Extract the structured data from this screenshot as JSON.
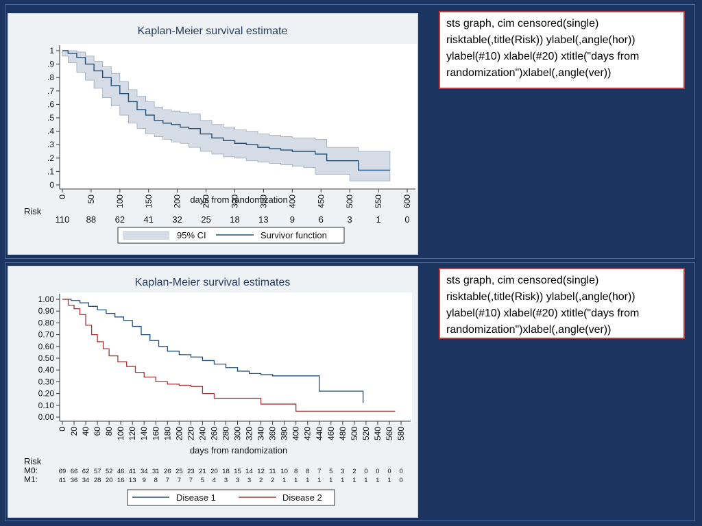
{
  "slide": {
    "code_text_1": "sts graph, cim censored(single)\nrisktable(,title(Risk)) ylabel(,angle(hor))\nylabel(#10) xlabel(#20) xtitle(\"days from\nrandomization\")xlabel(,angle(ver))",
    "code_text_2": "sts graph, cim censored(single)\nrisktable(,title(Risk)) ylabel(,angle(hor))\nylabel(#10) xlabel(#20) xtitle(\"days from\nrandomization\")xlabel(,angle(ver))",
    "colors": {
      "background": "#1b3560",
      "plot_background": "#eef2f5",
      "code_border": "#c0393b",
      "survivor_line": "#1f4e79",
      "disease2_line": "#a83232",
      "ci_band": "#d5dce6"
    }
  },
  "chart_data": [
    {
      "type": "line",
      "title": "Kaplan-Meier survival estimate",
      "xlabel": "days from randomization",
      "ylabel": "",
      "xlim": [
        0,
        600
      ],
      "ylim": [
        0,
        1
      ],
      "x_ticks": [
        0,
        50,
        100,
        150,
        200,
        250,
        300,
        350,
        400,
        450,
        500,
        550,
        600
      ],
      "y_ticks": [
        0,
        0.1,
        0.2,
        0.3,
        0.4,
        0.5,
        0.6,
        0.7,
        0.8,
        0.9,
        1
      ],
      "y_tick_labels": [
        "0",
        ".1",
        ".2",
        ".3",
        ".4",
        ".5",
        ".6",
        ".7",
        ".8",
        ".9",
        "1"
      ],
      "grid": false,
      "legend_position": "bottom",
      "series": [
        {
          "name": "Survivor function",
          "x": [
            0,
            10,
            25,
            40,
            55,
            70,
            85,
            100,
            115,
            130,
            145,
            160,
            175,
            190,
            205,
            220,
            240,
            260,
            280,
            300,
            320,
            340,
            360,
            380,
            400,
            420,
            440,
            460,
            480,
            500,
            515,
            545,
            570
          ],
          "y": [
            1,
            0.98,
            0.95,
            0.9,
            0.85,
            0.8,
            0.74,
            0.68,
            0.62,
            0.56,
            0.52,
            0.48,
            0.46,
            0.45,
            0.43,
            0.42,
            0.38,
            0.35,
            0.33,
            0.31,
            0.3,
            0.28,
            0.27,
            0.26,
            0.25,
            0.25,
            0.23,
            0.18,
            0.18,
            0.18,
            0.11,
            0.11,
            0.11
          ],
          "ci_lower": [
            1,
            0.96,
            0.91,
            0.84,
            0.78,
            0.72,
            0.65,
            0.59,
            0.52,
            0.46,
            0.42,
            0.38,
            0.36,
            0.34,
            0.32,
            0.31,
            0.28,
            0.25,
            0.23,
            0.21,
            0.2,
            0.18,
            0.17,
            0.16,
            0.15,
            0.14,
            0.13,
            0.08,
            0.08,
            0.08,
            0.03,
            0.03,
            0.03
          ],
          "ci_upper": [
            1,
            1,
            0.99,
            0.96,
            0.92,
            0.88,
            0.83,
            0.77,
            0.71,
            0.66,
            0.62,
            0.58,
            0.56,
            0.55,
            0.54,
            0.53,
            0.48,
            0.45,
            0.43,
            0.41,
            0.4,
            0.38,
            0.37,
            0.36,
            0.35,
            0.35,
            0.34,
            0.28,
            0.28,
            0.28,
            0.25,
            0.25,
            0.25
          ]
        }
      ],
      "legend": [
        "95% CI",
        "Survivor function"
      ],
      "risk_title": "Risk",
      "risk_x": [
        0,
        50,
        100,
        150,
        200,
        250,
        300,
        350,
        400,
        450,
        500,
        550,
        600
      ],
      "risk_values": [
        "110",
        "88",
        "62",
        "41",
        "32",
        "25",
        "18",
        "13",
        "9",
        "6",
        "3",
        "1",
        "0"
      ]
    },
    {
      "type": "line",
      "title": "Kaplan-Meier survival estimates",
      "xlabel": "days from randomization",
      "ylabel": "",
      "xlim": [
        0,
        580
      ],
      "ylim": [
        0,
        1
      ],
      "x_ticks": [
        0,
        20,
        40,
        60,
        80,
        100,
        120,
        140,
        160,
        180,
        200,
        220,
        240,
        260,
        280,
        300,
        320,
        340,
        360,
        380,
        400,
        420,
        440,
        460,
        480,
        500,
        520,
        540,
        560,
        580
      ],
      "y_ticks": [
        0,
        0.1,
        0.2,
        0.3,
        0.4,
        0.5,
        0.6,
        0.7,
        0.8,
        0.9,
        1
      ],
      "y_tick_labels": [
        "0.00",
        "0.10",
        "0.20",
        "0.30",
        "0.40",
        "0.50",
        "0.60",
        "0.70",
        "0.80",
        "0.90",
        "1.00"
      ],
      "grid": false,
      "legend_position": "bottom",
      "series": [
        {
          "name": "Disease 1",
          "x": [
            0,
            15,
            30,
            45,
            60,
            75,
            90,
            105,
            120,
            135,
            150,
            165,
            180,
            200,
            220,
            240,
            260,
            280,
            300,
            320,
            340,
            360,
            380,
            400,
            420,
            440,
            460,
            480,
            500,
            510,
            515
          ],
          "y": [
            1,
            0.99,
            0.97,
            0.94,
            0.91,
            0.88,
            0.85,
            0.82,
            0.77,
            0.7,
            0.65,
            0.6,
            0.56,
            0.53,
            0.51,
            0.48,
            0.45,
            0.42,
            0.39,
            0.37,
            0.36,
            0.35,
            0.35,
            0.35,
            0.35,
            0.22,
            0.22,
            0.22,
            0.22,
            0.22,
            0.12
          ]
        },
        {
          "name": "Disease 2",
          "x": [
            0,
            10,
            20,
            30,
            40,
            50,
            60,
            70,
            80,
            95,
            110,
            125,
            140,
            160,
            180,
            200,
            220,
            240,
            260,
            280,
            300,
            320,
            340,
            360,
            380,
            400,
            440,
            480,
            520,
            560,
            570
          ],
          "y": [
            1,
            0.95,
            0.92,
            0.87,
            0.78,
            0.7,
            0.64,
            0.58,
            0.52,
            0.47,
            0.43,
            0.38,
            0.34,
            0.3,
            0.28,
            0.27,
            0.26,
            0.2,
            0.16,
            0.16,
            0.16,
            0.16,
            0.11,
            0.11,
            0.11,
            0.05,
            0.05,
            0.05,
            0.05,
            0.05,
            0.05
          ]
        }
      ],
      "legend": [
        "Disease 1",
        "Disease 2"
      ],
      "risk_title": "Risk",
      "risk_rows": [
        {
          "label": "M0:",
          "values": [
            "69",
            "66",
            "62",
            "57",
            "52",
            "46",
            "41",
            "34",
            "31",
            "26",
            "25",
            "23",
            "21",
            "20",
            "18",
            "15",
            "14",
            "12",
            "11",
            "10",
            "8",
            "8",
            "7",
            "5",
            "3",
            "2",
            "0",
            "0",
            "0",
            "0"
          ]
        },
        {
          "label": "M1:",
          "values": [
            "41",
            "36",
            "34",
            "28",
            "20",
            "16",
            "13",
            "9",
            "8",
            "7",
            "7",
            "7",
            "5",
            "4",
            "3",
            "3",
            "3",
            "2",
            "2",
            "1",
            "1",
            "1",
            "1",
            "1",
            "1",
            "1",
            "1",
            "1",
            "1",
            "0"
          ]
        }
      ]
    }
  ]
}
